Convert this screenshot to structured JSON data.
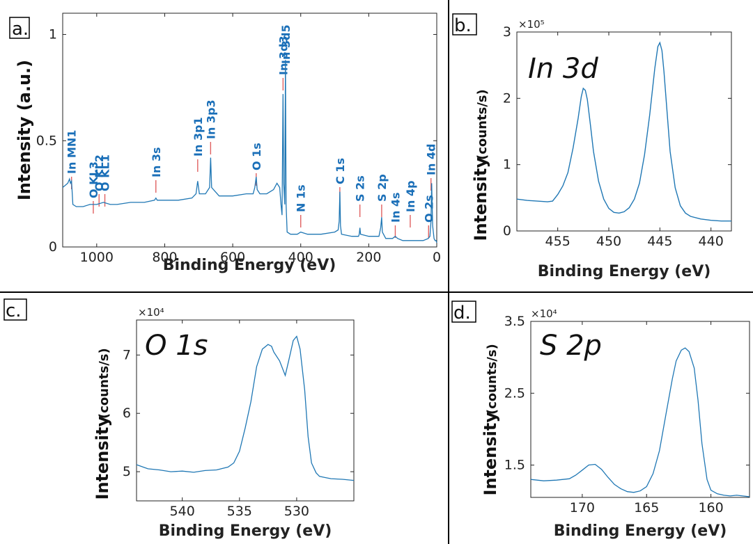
{
  "panels": [
    {
      "id": "a",
      "label": "a.",
      "xlabel": "Binding Energy (eV)",
      "ylabel": "Intensity (a.u.)",
      "ylabel_main": "Intensity",
      "ylabel_unit": "(a.u.)",
      "title": "",
      "scale": "",
      "xlim": [
        1100,
        0
      ],
      "ylim": [
        0,
        1.1
      ],
      "xticks": [
        1000,
        800,
        600,
        400,
        200,
        0
      ],
      "xtick_labels": [
        "1000",
        "800",
        "600",
        "400",
        "200",
        "0"
      ],
      "yticks": [
        0,
        0.5,
        1
      ],
      "ytick_labels": [
        "0",
        "0.5",
        "1"
      ],
      "peak_labels": [
        {
          "text": "In MN1",
          "x": 1074
        },
        {
          "text": "O KL3",
          "x": 1010
        },
        {
          "text": "O KL2",
          "x": 993
        },
        {
          "text": "O KL1",
          "x": 976
        },
        {
          "text": "In 3s",
          "x": 826
        },
        {
          "text": "In 3p1",
          "x": 703
        },
        {
          "text": "In 3p3",
          "x": 665
        },
        {
          "text": "O 1s",
          "x": 531
        },
        {
          "text": "In 3d3",
          "x": 452
        },
        {
          "text": "In 3d5",
          "x": 445
        },
        {
          "text": "N 1s",
          "x": 400
        },
        {
          "text": "C 1s",
          "x": 285
        },
        {
          "text": "S 2s",
          "x": 226
        },
        {
          "text": "S 2p",
          "x": 162
        },
        {
          "text": "In 4s",
          "x": 122
        },
        {
          "text": "In 4p",
          "x": 78
        },
        {
          "text": "O 2s",
          "x": 24
        },
        {
          "text": "In 4d",
          "x": 17
        }
      ]
    },
    {
      "id": "b",
      "label": "b.",
      "xlabel": "Binding Energy (eV)",
      "ylabel_main": "Intensity",
      "ylabel_unit": "(counts/s)",
      "title": "In 3d",
      "scale": "×10⁵",
      "xlim": [
        459,
        438
      ],
      "ylim": [
        0,
        3
      ],
      "xticks": [
        455,
        450,
        445,
        440
      ],
      "xtick_labels": [
        "455",
        "450",
        "445",
        "440"
      ],
      "yticks": [
        0,
        1,
        2,
        3
      ],
      "ytick_labels": [
        "0",
        "1",
        "2",
        "3"
      ]
    },
    {
      "id": "c",
      "label": "c.",
      "xlabel": "Binding Energy (eV)",
      "ylabel_main": "Intensity",
      "ylabel_unit": "(counts/s)",
      "title": "O 1s",
      "scale": "×10⁴",
      "xlim": [
        544,
        525
      ],
      "ylim": [
        4.5,
        7.6
      ],
      "xticks": [
        540,
        535,
        530
      ],
      "xtick_labels": [
        "540",
        "535",
        "530"
      ],
      "yticks": [
        5,
        6,
        7
      ],
      "ytick_labels": [
        "5",
        "6",
        "7"
      ]
    },
    {
      "id": "d",
      "label": "d.",
      "xlabel": "Binding Energy (eV)",
      "ylabel_main": "Intensity",
      "ylabel_unit": "(counts/s)",
      "title": "S 2p",
      "scale": "×10⁴",
      "xlim": [
        174,
        157
      ],
      "ylim": [
        1.05,
        3.5
      ],
      "xticks": [
        170,
        165,
        160
      ],
      "xtick_labels": [
        "170",
        "165",
        "160"
      ],
      "yticks": [
        1.5,
        2.5,
        3.5
      ],
      "ytick_labels": [
        "1.5",
        "2.5",
        "3.5"
      ]
    }
  ],
  "chart_data": [
    {
      "type": "line",
      "xlabel": "Binding Energy (eV)",
      "ylabel": "Intensity (a.u.)",
      "xlim": [
        1100,
        0
      ],
      "ylim": [
        0,
        1.1
      ],
      "series": [
        {
          "x": [
            1100,
            1085,
            1080,
            1077,
            1074,
            1070,
            1060,
            1040,
            1020,
            1000,
            980,
            960,
            940,
            900,
            860,
            830,
            826,
            822,
            800,
            760,
            720,
            708,
            703,
            698,
            680,
            668,
            665,
            662,
            640,
            600,
            560,
            540,
            535,
            531,
            528,
            520,
            500,
            480,
            470,
            462,
            458,
            455,
            452,
            450,
            447,
            445,
            443,
            440,
            430,
            410,
            400,
            380,
            340,
            300,
            290,
            287,
            285,
            283,
            280,
            250,
            230,
            228,
            226,
            224,
            200,
            170,
            165,
            162,
            160,
            150,
            130,
            122,
            115,
            100,
            80,
            60,
            40,
            25,
            20,
            17,
            15,
            12,
            8,
            5,
            2,
            0
          ],
          "y": [
            0.28,
            0.3,
            0.32,
            0.3,
            0.31,
            0.2,
            0.19,
            0.19,
            0.2,
            0.2,
            0.21,
            0.2,
            0.2,
            0.21,
            0.21,
            0.22,
            0.23,
            0.22,
            0.22,
            0.22,
            0.23,
            0.25,
            0.31,
            0.25,
            0.25,
            0.28,
            0.42,
            0.28,
            0.24,
            0.24,
            0.25,
            0.25,
            0.28,
            0.33,
            0.27,
            0.25,
            0.25,
            0.27,
            0.3,
            0.28,
            0.2,
            0.15,
            0.72,
            0.3,
            0.2,
            0.88,
            0.2,
            0.07,
            0.06,
            0.06,
            0.07,
            0.06,
            0.06,
            0.07,
            0.08,
            0.12,
            0.26,
            0.1,
            0.06,
            0.05,
            0.05,
            0.06,
            0.09,
            0.06,
            0.05,
            0.05,
            0.09,
            0.14,
            0.07,
            0.04,
            0.04,
            0.05,
            0.04,
            0.03,
            0.03,
            0.03,
            0.03,
            0.04,
            0.05,
            0.12,
            0.3,
            0.1,
            0.04,
            0.03,
            0.03,
            0.02
          ]
        }
      ]
    },
    {
      "type": "line",
      "title": "In 3d",
      "xlabel": "Binding Energy (eV)",
      "ylabel": "Intensity (counts/s)",
      "xlim": [
        459,
        438
      ],
      "ylim": [
        0,
        3
      ],
      "y_multiplier": 100000,
      "series": [
        {
          "x": [
            459,
            458,
            457,
            456,
            455.5,
            455,
            454.5,
            454,
            453.5,
            453,
            452.7,
            452.5,
            452.3,
            452.1,
            451.8,
            451.5,
            451,
            450.5,
            450,
            449.5,
            449,
            448.5,
            448,
            447.5,
            447,
            446.5,
            446,
            445.5,
            445.2,
            445,
            444.8,
            444.6,
            444.3,
            444,
            443.5,
            443,
            442.5,
            442,
            441,
            440,
            439,
            438
          ],
          "y": [
            0.48,
            0.46,
            0.45,
            0.44,
            0.45,
            0.55,
            0.68,
            0.88,
            1.25,
            1.7,
            2.02,
            2.15,
            2.12,
            1.98,
            1.6,
            1.2,
            0.75,
            0.48,
            0.34,
            0.28,
            0.27,
            0.29,
            0.35,
            0.48,
            0.72,
            1.15,
            1.75,
            2.45,
            2.78,
            2.84,
            2.72,
            2.4,
            1.8,
            1.2,
            0.65,
            0.38,
            0.27,
            0.22,
            0.18,
            0.16,
            0.15,
            0.15
          ]
        }
      ]
    },
    {
      "type": "line",
      "title": "O 1s",
      "xlabel": "Binding Energy (eV)",
      "ylabel": "Intensity (counts/s)",
      "xlim": [
        544,
        525
      ],
      "ylim": [
        4.5,
        7.6
      ],
      "y_multiplier": 10000,
      "series": [
        {
          "x": [
            544,
            543,
            542,
            541,
            540,
            539,
            538,
            537,
            536,
            535.5,
            535,
            534.5,
            534,
            533.5,
            533,
            532.5,
            532.2,
            532,
            531.5,
            531,
            530.7,
            530.3,
            530,
            529.7,
            529.3,
            529,
            528.7,
            528.3,
            528,
            527.5,
            527,
            526,
            525
          ],
          "y": [
            5.12,
            5.05,
            5.03,
            5.0,
            5.01,
            4.99,
            5.02,
            5.03,
            5.08,
            5.15,
            5.35,
            5.75,
            6.2,
            6.8,
            7.1,
            7.18,
            7.15,
            7.05,
            6.9,
            6.65,
            6.9,
            7.25,
            7.32,
            7.1,
            6.4,
            5.6,
            5.15,
            4.98,
            4.92,
            4.9,
            4.88,
            4.87,
            4.85
          ]
        }
      ]
    },
    {
      "type": "line",
      "title": "S 2p",
      "xlabel": "Binding Energy (eV)",
      "ylabel": "Intensity (counts/s)",
      "xlim": [
        174,
        157
      ],
      "ylim": [
        1.05,
        3.5
      ],
      "y_multiplier": 10000,
      "series": [
        {
          "x": [
            174,
            173,
            172,
            171,
            170.5,
            170,
            169.5,
            169,
            168.5,
            168,
            167.5,
            167,
            166.5,
            166,
            165.5,
            165,
            164.5,
            164,
            163.5,
            163,
            162.7,
            162.3,
            162,
            161.7,
            161.3,
            161,
            160.7,
            160.3,
            160,
            159.5,
            159,
            158.5,
            158,
            157
          ],
          "y": [
            1.3,
            1.28,
            1.29,
            1.31,
            1.36,
            1.43,
            1.5,
            1.51,
            1.44,
            1.33,
            1.23,
            1.17,
            1.13,
            1.12,
            1.14,
            1.2,
            1.38,
            1.7,
            2.2,
            2.7,
            2.95,
            3.1,
            3.13,
            3.08,
            2.85,
            2.4,
            1.8,
            1.3,
            1.15,
            1.1,
            1.08,
            1.07,
            1.08,
            1.06
          ]
        }
      ]
    }
  ],
  "colors": {
    "line": "#1f77b4",
    "peak_marker": "#e06060",
    "peak_text": "#1a6fb8",
    "axis": "#222222"
  }
}
